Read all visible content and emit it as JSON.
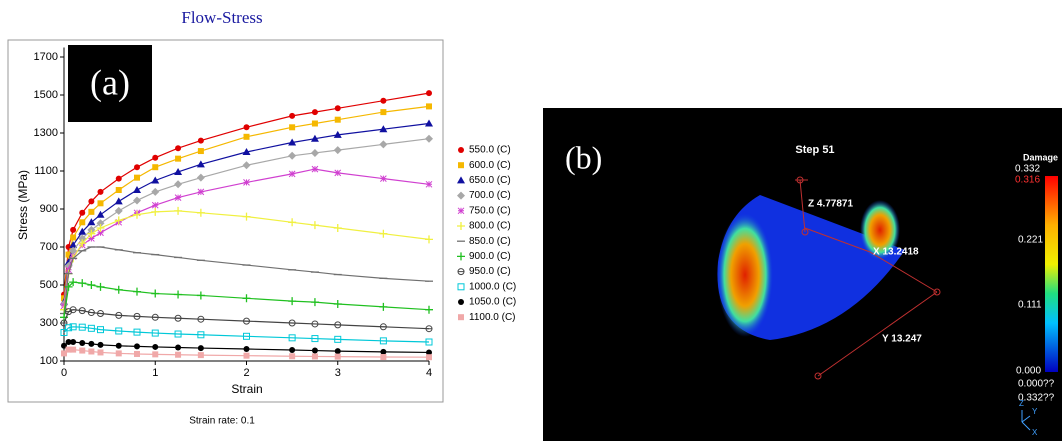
{
  "chart_data": {
    "type": "line",
    "title": "Flow-Stress",
    "panel_label": "(a)",
    "note": "Strain rate: 0.1",
    "x_label": "Strain",
    "y_label": "Stress (MPa)",
    "x": [
      0,
      0.05,
      0.1,
      0.2,
      0.3,
      0.4,
      0.6,
      0.8,
      1,
      1.25,
      1.5,
      2,
      2.5,
      2.75,
      3,
      3.5,
      4
    ],
    "xlim": [
      0,
      4
    ],
    "xticks": [
      0,
      1,
      2,
      3,
      4
    ],
    "ylim": [
      100,
      1750
    ],
    "yticks": [
      100,
      300,
      500,
      700,
      900,
      1100,
      1300,
      1500,
      1700
    ],
    "series": [
      {
        "name": "550.0 (C)",
        "color": "#e00000",
        "marker": "circle",
        "values": [
          450,
          700,
          790,
          880,
          940,
          990,
          1060,
          1120,
          1170,
          1220,
          1260,
          1330,
          1390,
          1410,
          1430,
          1470,
          1510
        ]
      },
      {
        "name": "600.0 (C)",
        "color": "#f5b800",
        "marker": "square",
        "values": [
          430,
          660,
          750,
          830,
          885,
          930,
          1000,
          1065,
          1120,
          1165,
          1205,
          1280,
          1330,
          1350,
          1370,
          1410,
          1440
        ]
      },
      {
        "name": "650.0 (C)",
        "color": "#1010a0",
        "marker": "triangle",
        "values": [
          410,
          620,
          710,
          780,
          830,
          870,
          940,
          1000,
          1050,
          1095,
          1135,
          1200,
          1250,
          1270,
          1290,
          1320,
          1350
        ]
      },
      {
        "name": "700.0 (C)",
        "color": "#a8a8a8",
        "marker": "diamond",
        "values": [
          400,
          600,
          680,
          745,
          790,
          825,
          890,
          945,
          990,
          1030,
          1065,
          1130,
          1180,
          1195,
          1210,
          1240,
          1270
        ]
      },
      {
        "name": "750.0 (C)",
        "color": "#d040d0",
        "marker": "star",
        "values": [
          390,
          580,
          650,
          710,
          745,
          775,
          830,
          880,
          920,
          960,
          990,
          1040,
          1085,
          1110,
          1090,
          1060,
          1030
        ]
      },
      {
        "name": "800.0 (C)",
        "color": "#f0f040",
        "marker": "plus",
        "values": [
          370,
          560,
          640,
          720,
          770,
          800,
          840,
          870,
          885,
          890,
          880,
          860,
          830,
          815,
          800,
          770,
          740
        ]
      },
      {
        "name": "850.0 (C)",
        "color": "#707070",
        "marker": "dash",
        "values": [
          350,
          560,
          640,
          680,
          700,
          700,
          685,
          670,
          660,
          645,
          630,
          605,
          580,
          568,
          555,
          535,
          520
        ]
      },
      {
        "name": "900.0 (C)",
        "color": "#20c020",
        "marker": "plus",
        "values": [
          330,
          490,
          515,
          510,
          500,
          490,
          475,
          465,
          455,
          450,
          445,
          430,
          415,
          410,
          400,
          385,
          370
        ]
      },
      {
        "name": "950.0 (C)",
        "color": "#444444",
        "marker": "theta",
        "values": [
          300,
          360,
          370,
          365,
          355,
          350,
          340,
          335,
          330,
          325,
          320,
          310,
          300,
          295,
          290,
          280,
          270
        ]
      },
      {
        "name": "1000.0 (C)",
        "color": "#00c8d8",
        "marker": "square-open",
        "values": [
          250,
          275,
          280,
          278,
          272,
          265,
          258,
          252,
          247,
          242,
          238,
          230,
          222,
          218,
          214,
          206,
          200
        ]
      },
      {
        "name": "1050.0 (C)",
        "color": "#000000",
        "marker": "circle",
        "values": [
          180,
          200,
          200,
          195,
          190,
          185,
          180,
          177,
          174,
          171,
          168,
          163,
          158,
          155,
          152,
          148,
          145
        ]
      },
      {
        "name": "1100.0 (C)",
        "color": "#f0a8a8",
        "marker": "square",
        "values": [
          140,
          160,
          160,
          155,
          150,
          145,
          140,
          137,
          135,
          133,
          131,
          128,
          125,
          124,
          123,
          121,
          120
        ]
      }
    ]
  },
  "panel_b": {
    "label": "(b)",
    "step": "Step  51",
    "z_dim": "Z  4.77871",
    "x_dim": "X  13.2418",
    "y_dim": "Y  13.247",
    "colorbar": {
      "title": "Damage",
      "max": "0.332",
      "current": "0.316",
      "mid_high": "0.221",
      "mid_low": "0.111",
      "min": "0.000",
      "range_min": "0.000??",
      "range_max": "0.332??"
    },
    "triad": {
      "z": "Z",
      "y": "Y",
      "x": "X"
    }
  }
}
